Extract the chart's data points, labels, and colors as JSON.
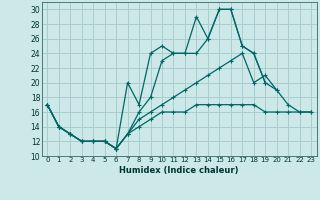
{
  "xlabel": "Humidex (Indice chaleur)",
  "background_color": "#cce8e8",
  "grid_color": "#aacccc",
  "line_color": "#006666",
  "xlim": [
    -0.5,
    23.5
  ],
  "ylim": [
    10,
    31
  ],
  "yticks": [
    10,
    12,
    14,
    16,
    18,
    20,
    22,
    24,
    26,
    28,
    30
  ],
  "xticks": [
    0,
    1,
    2,
    3,
    4,
    5,
    6,
    7,
    8,
    9,
    10,
    11,
    12,
    13,
    14,
    15,
    16,
    17,
    18,
    19,
    20,
    21,
    22,
    23
  ],
  "series": [
    [
      17,
      14,
      13,
      12,
      12,
      12,
      11,
      20,
      17,
      24,
      25,
      24,
      24,
      29,
      26,
      30,
      30,
      25,
      24,
      20,
      null,
      null,
      null,
      null
    ],
    [
      17,
      14,
      13,
      12,
      12,
      12,
      11,
      13,
      16,
      18,
      23,
      24,
      24,
      24,
      26,
      30,
      30,
      25,
      24,
      20,
      19,
      17,
      16,
      16
    ],
    [
      17,
      14,
      13,
      12,
      12,
      12,
      11,
      13,
      15,
      16,
      17,
      18,
      19,
      20,
      21,
      22,
      23,
      24,
      20,
      21,
      19,
      null,
      null,
      null
    ],
    [
      17,
      14,
      13,
      12,
      12,
      12,
      11,
      13,
      14,
      15,
      16,
      16,
      16,
      17,
      17,
      17,
      17,
      17,
      17,
      16,
      16,
      16,
      16,
      16
    ]
  ]
}
